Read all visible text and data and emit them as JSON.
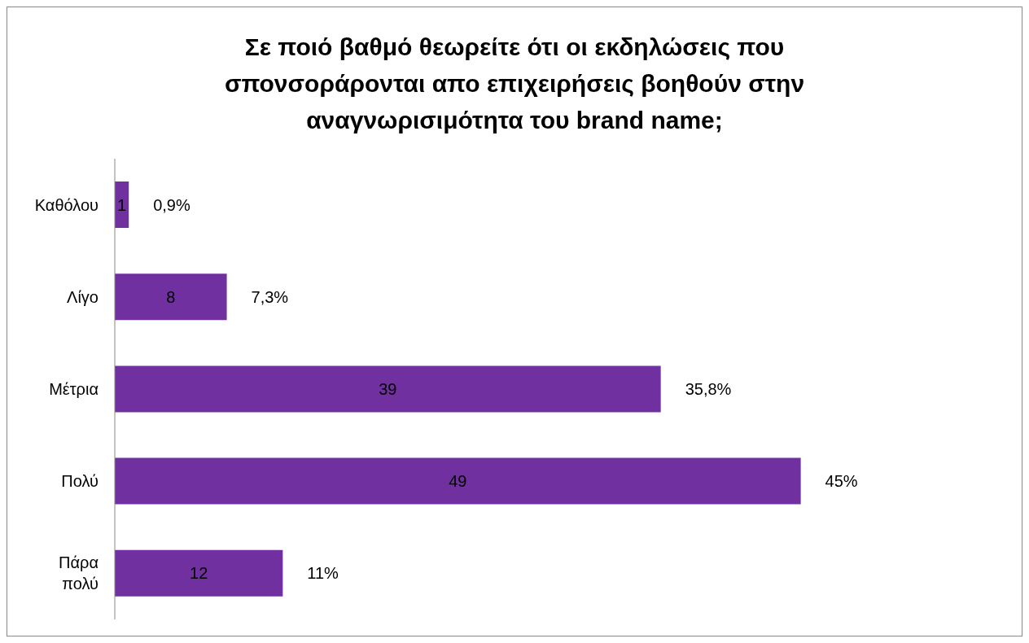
{
  "chart_data": {
    "type": "bar",
    "orientation": "horizontal",
    "title": "Σε ποιό βαθμό θεωρείτε ότι οι εκδηλώσεις που σπονσοράρονται απο επιχειρήσεις βοηθούν στην αναγνωρισιμότητα του brand name;",
    "categories": [
      "Καθόλου",
      "Λίγο",
      "Μέτρια",
      "Πολύ",
      "Πάρα πολύ"
    ],
    "values": [
      1,
      8,
      39,
      49,
      12
    ],
    "color": "#7030a0",
    "data_labels": true,
    "grid": false,
    "legend": false,
    "annotations": [
      "0,9%",
      "7,3%",
      "35,8%",
      "45%",
      "11%"
    ]
  }
}
